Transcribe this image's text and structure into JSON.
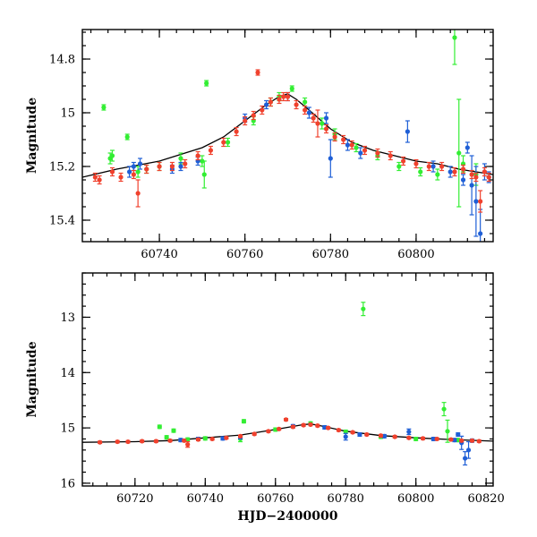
{
  "chart_data": [
    {
      "type": "scatter",
      "title": "",
      "xlabel": "",
      "ylabel": "Magnitude",
      "xlim": [
        60722,
        60818
      ],
      "ylim": [
        15.48,
        14.69
      ],
      "y_inverted": true,
      "xticks": [
        60740,
        60760,
        60780,
        60800
      ],
      "yticks": [
        14.8,
        15,
        15.2,
        15.4
      ],
      "grid": false,
      "colors": {
        "green": "#33ee33",
        "blue": "#1f5fd6",
        "red": "#f0412d",
        "model": "#000000"
      },
      "model_curve": {
        "x": [
          60722,
          60730,
          60740,
          60750,
          60755,
          60760,
          60765,
          60768,
          60770,
          60772,
          60775,
          60780,
          60785,
          60790,
          60795,
          60800,
          60805,
          60810,
          60818
        ],
        "y": [
          15.24,
          15.21,
          15.18,
          15.13,
          15.09,
          15.03,
          14.97,
          14.94,
          14.93,
          14.95,
          14.99,
          15.06,
          15.11,
          15.14,
          15.16,
          15.18,
          15.19,
          15.21,
          15.23
        ]
      },
      "series": [
        {
          "color": "green",
          "points": [
            [
              60727,
              14.98,
              0.01
            ],
            [
              60728.5,
              15.17,
              0.02
            ],
            [
              60729,
              15.16,
              0.02
            ],
            [
              60732.5,
              15.09,
              0.01
            ],
            [
              60735,
              15.22,
              0.02
            ],
            [
              60737,
              15.21,
              0.015
            ],
            [
              60740,
              15.2,
              0.015
            ],
            [
              60745,
              15.17,
              0.02
            ],
            [
              60750,
              15.18,
              0.02
            ],
            [
              60750.5,
              15.23,
              0.05
            ],
            [
              60751,
              14.89,
              0.01
            ],
            [
              60756,
              15.11,
              0.015
            ],
            [
              60762,
              15.03,
              0.015
            ],
            [
              60766,
              14.96,
              0.015
            ],
            [
              60768,
              14.94,
              0.015
            ],
            [
              60771,
              14.91,
              0.01
            ],
            [
              60774,
              14.96,
              0.015
            ],
            [
              60778,
              15.04,
              0.02
            ],
            [
              60781,
              15.08,
              0.02
            ],
            [
              60786,
              15.13,
              0.015
            ],
            [
              60791,
              15.16,
              0.015
            ],
            [
              60796,
              15.2,
              0.015
            ],
            [
              60801,
              15.22,
              0.015
            ],
            [
              60805,
              15.23,
              0.02
            ],
            [
              60809,
              14.72,
              0.1
            ],
            [
              60810,
              15.15,
              0.2
            ],
            [
              60811,
              15.19,
              0.03
            ],
            [
              60814,
              15.23,
              0.04
            ]
          ]
        },
        {
          "color": "blue",
          "points": [
            [
              60733,
              15.22,
              0.02
            ],
            [
              60734,
              15.2,
              0.015
            ],
            [
              60735.5,
              15.19,
              0.02
            ],
            [
              60743,
              15.21,
              0.015
            ],
            [
              60745,
              15.2,
              0.015
            ],
            [
              60749,
              15.18,
              0.015
            ],
            [
              60760,
              15.02,
              0.015
            ],
            [
              60765,
              14.97,
              0.015
            ],
            [
              60770,
              14.94,
              0.015
            ],
            [
              60775,
              15.0,
              0.02
            ],
            [
              60779,
              15.02,
              0.02
            ],
            [
              60780,
              15.17,
              0.07
            ],
            [
              60784,
              15.12,
              0.02
            ],
            [
              60787,
              15.15,
              0.02
            ],
            [
              60798,
              15.07,
              0.04
            ],
            [
              60804,
              15.2,
              0.02
            ],
            [
              60808,
              15.22,
              0.02
            ],
            [
              60811,
              15.25,
              0.02
            ],
            [
              60812,
              15.13,
              0.02
            ],
            [
              60813,
              15.27,
              0.11
            ],
            [
              60814,
              15.33,
              0.13
            ],
            [
              60815,
              15.45,
              0.09
            ],
            [
              60816,
              15.22,
              0.03
            ],
            [
              60817,
              15.24,
              0.02
            ]
          ]
        },
        {
          "color": "red",
          "points": [
            [
              60725,
              15.24,
              0.015
            ],
            [
              60726,
              15.25,
              0.015
            ],
            [
              60729,
              15.22,
              0.015
            ],
            [
              60731,
              15.24,
              0.015
            ],
            [
              60734,
              15.23,
              0.015
            ],
            [
              60735,
              15.3,
              0.05
            ],
            [
              60737,
              15.21,
              0.015
            ],
            [
              60740,
              15.2,
              0.015
            ],
            [
              60743,
              15.2,
              0.015
            ],
            [
              60746,
              15.19,
              0.015
            ],
            [
              60749,
              15.16,
              0.015
            ],
            [
              60752,
              15.14,
              0.015
            ],
            [
              60755,
              15.11,
              0.015
            ],
            [
              60758,
              15.07,
              0.015
            ],
            [
              60760,
              15.03,
              0.015
            ],
            [
              60762,
              15.01,
              0.015
            ],
            [
              60763,
              14.85,
              0.01
            ],
            [
              60764,
              14.99,
              0.015
            ],
            [
              60766,
              14.96,
              0.015
            ],
            [
              60768,
              14.95,
              0.015
            ],
            [
              60769,
              14.94,
              0.015
            ],
            [
              60770,
              14.94,
              0.015
            ],
            [
              60772,
              14.97,
              0.015
            ],
            [
              60774,
              14.99,
              0.015
            ],
            [
              60776,
              15.02,
              0.015
            ],
            [
              60777,
              15.04,
              0.05
            ],
            [
              60779,
              15.06,
              0.015
            ],
            [
              60781,
              15.09,
              0.015
            ],
            [
              60783,
              15.1,
              0.015
            ],
            [
              60785,
              15.12,
              0.015
            ],
            [
              60788,
              15.14,
              0.015
            ],
            [
              60791,
              15.15,
              0.015
            ],
            [
              60794,
              15.16,
              0.015
            ],
            [
              60797,
              15.18,
              0.015
            ],
            [
              60800,
              15.19,
              0.015
            ],
            [
              60803,
              15.2,
              0.015
            ],
            [
              60806,
              15.2,
              0.015
            ],
            [
              60809,
              15.22,
              0.015
            ],
            [
              60811,
              15.21,
              0.015
            ],
            [
              60813,
              15.23,
              0.015
            ],
            [
              60814,
              15.24,
              0.015
            ],
            [
              60815,
              15.33,
              0.04
            ],
            [
              60816,
              15.22,
              0.015
            ],
            [
              60817,
              15.24,
              0.015
            ]
          ]
        }
      ]
    },
    {
      "type": "scatter",
      "title": "",
      "xlabel": "HJD−2400000",
      "ylabel": "Magnitude",
      "xlim": [
        60705,
        60822
      ],
      "ylim": [
        16.05,
        12.2
      ],
      "y_inverted": true,
      "xticks": [
        60720,
        60740,
        60760,
        60780,
        60800,
        60820
      ],
      "yticks": [
        13,
        14,
        15,
        16
      ],
      "grid": false,
      "colors": {
        "green": "#33ee33",
        "blue": "#1f5fd6",
        "red": "#f0412d",
        "model": "#000000"
      },
      "model_curve": {
        "x": [
          60705,
          60720,
          60730,
          60740,
          60750,
          60760,
          60768,
          60770,
          60772,
          60780,
          60790,
          60800,
          60810,
          60822
        ],
        "y": [
          15.26,
          15.25,
          15.23,
          15.18,
          15.13,
          15.03,
          14.94,
          14.93,
          14.95,
          15.06,
          15.14,
          15.18,
          15.21,
          15.24
        ]
      },
      "series": [
        {
          "color": "green",
          "points": [
            [
              60727,
              14.98,
              0.03
            ],
            [
              60729,
              15.17,
              0.03
            ],
            [
              60731,
              15.05,
              0.03
            ],
            [
              60735,
              15.21,
              0.03
            ],
            [
              60740,
              15.19,
              0.03
            ],
            [
              60750,
              15.2,
              0.05
            ],
            [
              60751,
              14.88,
              0.03
            ],
            [
              60760,
              15.03,
              0.03
            ],
            [
              60770,
              14.92,
              0.03
            ],
            [
              60780,
              15.07,
              0.03
            ],
            [
              60785,
              12.85,
              0.12
            ],
            [
              60790,
              15.16,
              0.03
            ],
            [
              60800,
              15.2,
              0.03
            ],
            [
              60808,
              14.66,
              0.12
            ],
            [
              60809,
              15.06,
              0.2
            ],
            [
              60812,
              15.22,
              0.03
            ]
          ]
        },
        {
          "color": "blue",
          "points": [
            [
              60733,
              15.22,
              0.03
            ],
            [
              60738,
              15.2,
              0.03
            ],
            [
              60745,
              15.19,
              0.03
            ],
            [
              60750,
              15.17,
              0.03
            ],
            [
              60765,
              14.97,
              0.03
            ],
            [
              60774,
              14.99,
              0.03
            ],
            [
              60780,
              15.16,
              0.06
            ],
            [
              60784,
              15.12,
              0.03
            ],
            [
              60791,
              15.15,
              0.03
            ],
            [
              60798,
              15.07,
              0.05
            ],
            [
              60805,
              15.2,
              0.03
            ],
            [
              60811,
              15.22,
              0.03
            ],
            [
              60812,
              15.12,
              0.03
            ],
            [
              60813,
              15.27,
              0.12
            ],
            [
              60814,
              15.55,
              0.12
            ],
            [
              60815,
              15.4,
              0.15
            ],
            [
              60816,
              15.23,
              0.03
            ]
          ]
        },
        {
          "color": "red",
          "points": [
            [
              60710,
              15.26,
              0.02
            ],
            [
              60715,
              15.25,
              0.02
            ],
            [
              60718,
              15.25,
              0.02
            ],
            [
              60722,
              15.24,
              0.02
            ],
            [
              60726,
              15.24,
              0.02
            ],
            [
              60730,
              15.23,
              0.02
            ],
            [
              60734,
              15.23,
              0.02
            ],
            [
              60735,
              15.3,
              0.05
            ],
            [
              60738,
              15.21,
              0.02
            ],
            [
              60742,
              15.2,
              0.02
            ],
            [
              60746,
              15.18,
              0.02
            ],
            [
              60750,
              15.15,
              0.02
            ],
            [
              60754,
              15.11,
              0.02
            ],
            [
              60758,
              15.06,
              0.02
            ],
            [
              60761,
              15.02,
              0.02
            ],
            [
              60763,
              14.85,
              0.02
            ],
            [
              60765,
              14.98,
              0.02
            ],
            [
              60768,
              14.95,
              0.02
            ],
            [
              60770,
              14.94,
              0.02
            ],
            [
              60772,
              14.96,
              0.02
            ],
            [
              60775,
              15.0,
              0.02
            ],
            [
              60778,
              15.04,
              0.02
            ],
            [
              60782,
              15.08,
              0.02
            ],
            [
              60786,
              15.12,
              0.02
            ],
            [
              60790,
              15.14,
              0.02
            ],
            [
              60794,
              15.16,
              0.02
            ],
            [
              60798,
              15.18,
              0.02
            ],
            [
              60802,
              15.19,
              0.02
            ],
            [
              60806,
              15.2,
              0.02
            ],
            [
              60810,
              15.21,
              0.02
            ],
            [
              60813,
              15.23,
              0.02
            ],
            [
              60816,
              15.23,
              0.02
            ],
            [
              60818,
              15.24,
              0.02
            ]
          ]
        }
      ]
    }
  ]
}
